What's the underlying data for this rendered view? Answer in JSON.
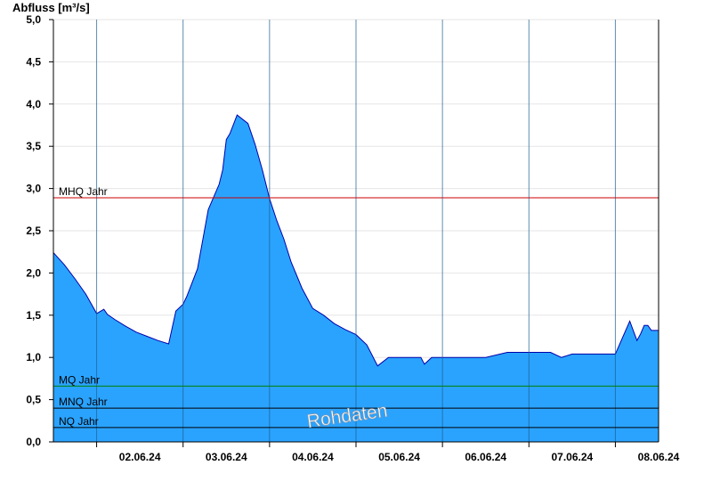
{
  "chart_data": {
    "type": "area",
    "ylabel": "Abfluss [m³/s]",
    "ylim": [
      0,
      5.0
    ],
    "yticks": [
      "0,0",
      "0,5",
      "1,0",
      "1,5",
      "2,0",
      "2,5",
      "3,0",
      "3,5",
      "4,0",
      "4,5",
      "5,0"
    ],
    "xlim": [
      "2024-06-01 12:00",
      "2024-06-08 12:00"
    ],
    "xticks": [
      "02.06.24",
      "03.06.24",
      "04.06.24",
      "05.06.24",
      "06.06.24",
      "07.06.24",
      "08.06.24"
    ],
    "grid": true,
    "colors": {
      "fill": "#2aa3ff",
      "line": "#0000aa",
      "mhq": "#cc0000",
      "mq": "#008000",
      "mnq": "#000000",
      "nq": "#000000"
    },
    "reference_lines": [
      {
        "label": "MHQ Jahr",
        "value": 2.89
      },
      {
        "label": "MQ Jahr",
        "value": 0.66
      },
      {
        "label": "MNQ Jahr",
        "value": 0.4
      },
      {
        "label": "NQ Jahr",
        "value": 0.17
      }
    ],
    "series": [
      {
        "x": [
          "2024-06-01 12:00",
          "2024-06-01 15:00",
          "2024-06-01 18:00",
          "2024-06-01 21:00",
          "2024-06-02 00:00",
          "2024-06-02 02:00",
          "2024-06-02 03:00",
          "2024-06-02 05:00",
          "2024-06-02 08:00",
          "2024-06-02 11:00",
          "2024-06-02 14:00",
          "2024-06-02 17:00",
          "2024-06-02 20:00",
          "2024-06-02 22:00",
          "2024-06-03 00:00",
          "2024-06-03 01:00",
          "2024-06-03 04:00",
          "2024-06-03 07:00",
          "2024-06-03 10:00",
          "2024-06-03 11:00",
          "2024-06-03 12:00",
          "2024-06-03 13:00",
          "2024-06-03 15:00",
          "2024-06-03 18:00",
          "2024-06-03 20:00",
          "2024-06-03 22:00",
          "2024-06-04 00:00",
          "2024-06-04 02:00",
          "2024-06-04 04:00",
          "2024-06-04 06:00",
          "2024-06-04 09:00",
          "2024-06-04 12:00",
          "2024-06-04 15:00",
          "2024-06-04 18:00",
          "2024-06-04 21:00",
          "2024-06-05 00:00",
          "2024-06-05 03:00",
          "2024-06-05 06:00",
          "2024-06-05 09:00",
          "2024-06-05 12:00",
          "2024-06-05 15:00",
          "2024-06-05 18:00",
          "2024-06-05 19:00",
          "2024-06-05 21:00",
          "2024-06-06 00:00",
          "2024-06-06 06:00",
          "2024-06-06 12:00",
          "2024-06-06 15:00",
          "2024-06-06 18:00",
          "2024-06-06 21:00",
          "2024-06-07 00:00",
          "2024-06-07 06:00",
          "2024-06-07 09:00",
          "2024-06-07 12:00",
          "2024-06-07 18:00",
          "2024-06-08 00:00",
          "2024-06-08 04:00",
          "2024-06-08 06:00",
          "2024-06-08 07:00",
          "2024-06-08 08:00",
          "2024-06-08 09:00",
          "2024-06-08 10:00",
          "2024-06-08 12:00"
        ],
        "y": [
          2.24,
          2.1,
          1.93,
          1.75,
          1.52,
          1.57,
          1.51,
          1.45,
          1.37,
          1.3,
          1.25,
          1.2,
          1.16,
          1.55,
          1.63,
          1.72,
          2.05,
          2.75,
          3.05,
          3.22,
          3.58,
          3.65,
          3.87,
          3.77,
          3.52,
          3.22,
          2.88,
          2.62,
          2.4,
          2.13,
          1.82,
          1.58,
          1.5,
          1.4,
          1.33,
          1.27,
          1.15,
          0.9,
          1.0,
          1.0,
          1.0,
          1.0,
          0.92,
          1.0,
          1.0,
          1.0,
          1.0,
          1.03,
          1.06,
          1.06,
          1.06,
          1.06,
          1.0,
          1.04,
          1.04,
          1.04,
          1.43,
          1.2,
          1.28,
          1.38,
          1.38,
          1.32,
          1.32
        ]
      }
    ],
    "annotation": "Rohdaten"
  }
}
